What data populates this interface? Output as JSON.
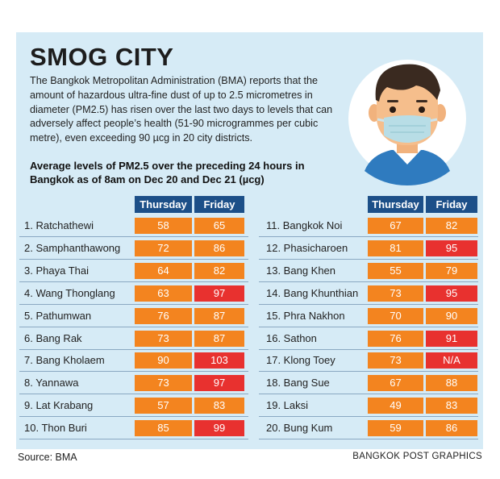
{
  "title": "SMOG CITY",
  "description": "The Bangkok Metropolitan Administration (BMA) reports that the amount of hazardous ultra-fine dust of up to 2.5 micrometres in diameter (PM2.5) has risen over the last two days to levels that can adversely affect people’s health (51-90 microgrammes per cubic metre), even exceeding 90 µcg in 20 city districts.",
  "subtitle": "Average levels of PM2.5 over the preceding 24 hours in Bangkok as of 8am on Dec 20 and Dec 21 (µcg)",
  "source": "Source: BMA",
  "credit": "BANGKOK POST GRAPHICS",
  "colors": {
    "panel": "#d6ebf6",
    "header": "#1c4f88",
    "orange": "#f3841f",
    "red": "#e8312f"
  },
  "chart_data": {
    "type": "table",
    "columns": [
      "Thursday",
      "Friday"
    ],
    "rows": [
      {
        "district": "1. Ratchathewi",
        "thursday": "58",
        "friday": "65"
      },
      {
        "district": "2. Samphanthawong",
        "thursday": "72",
        "friday": "86"
      },
      {
        "district": "3. Phaya Thai",
        "thursday": "64",
        "friday": "82"
      },
      {
        "district": "4. Wang Thonglang",
        "thursday": "63",
        "friday": "97"
      },
      {
        "district": "5. Pathumwan",
        "thursday": "76",
        "friday": "87"
      },
      {
        "district": "6. Bang Rak",
        "thursday": "73",
        "friday": "87"
      },
      {
        "district": "7. Bang Kholaem",
        "thursday": "90",
        "friday": "103"
      },
      {
        "district": "8. Yannawa",
        "thursday": "73",
        "friday": "97"
      },
      {
        "district": "9. Lat Krabang",
        "thursday": "57",
        "friday": "83"
      },
      {
        "district": "10. Thon Buri",
        "thursday": "85",
        "friday": "99"
      },
      {
        "district": "11. Bangkok Noi",
        "thursday": "67",
        "friday": "82"
      },
      {
        "district": "12. Phasicharoen",
        "thursday": "81",
        "friday": "95"
      },
      {
        "district": "13. Bang Khen",
        "thursday": "55",
        "friday": "79"
      },
      {
        "district": "14. Bang Khunthian",
        "thursday": "73",
        "friday": "95"
      },
      {
        "district": "15. Phra Nakhon",
        "thursday": "70",
        "friday": "90"
      },
      {
        "district": "16. Sathon",
        "thursday": "76",
        "friday": "91"
      },
      {
        "district": "17. Klong Toey",
        "thursday": "73",
        "friday": "N/A"
      },
      {
        "district": "18. Bang Sue",
        "thursday": "67",
        "friday": "88"
      },
      {
        "district": "19. Laksi",
        "thursday": "49",
        "friday": "83"
      },
      {
        "district": "20. Bung Kum",
        "thursday": "59",
        "friday": "86"
      }
    ]
  }
}
